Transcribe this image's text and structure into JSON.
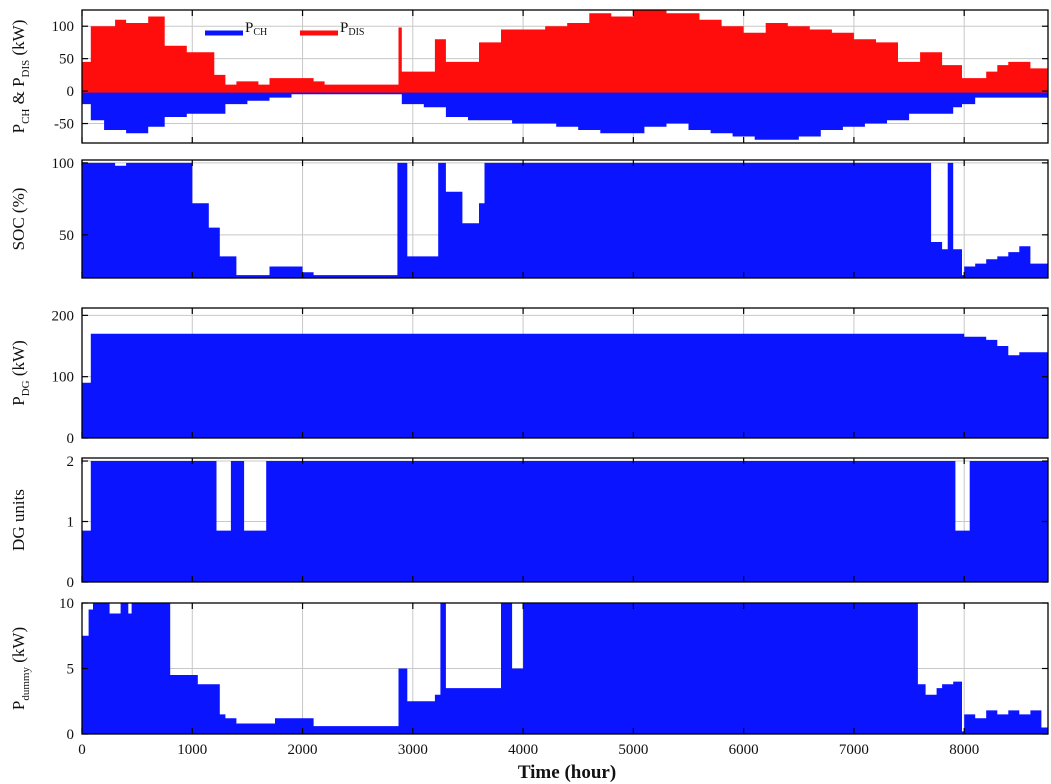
{
  "figure": {
    "xlabel": "Time (hour)",
    "xticks": [
      0,
      1000,
      2000,
      3000,
      4000,
      5000,
      6000,
      7000,
      8000
    ],
    "xlim": [
      0,
      8760
    ],
    "colors": {
      "charge": "#0a14ff",
      "discharge": "#ff0c0c",
      "fill": "#0a14ff",
      "grid": "#c8c8c8"
    }
  },
  "chart_data": [
    {
      "id": "pch",
      "type": "area",
      "ylabel_main": "P",
      "ylabel_sub1": "CH",
      "ylabel_mid": " & P",
      "ylabel_sub2": "DIS",
      "ylabel_unit": " (kW)",
      "ylim": [
        -80,
        125
      ],
      "yticks": [
        100,
        50,
        0,
        -50
      ],
      "legend": {
        "placement": "top-center",
        "items": [
          {
            "main": "P",
            "sub": "CH",
            "color": "#0a14ff"
          },
          {
            "main": "P",
            "sub": "DIS",
            "color": "#ff0c0c"
          }
        ]
      },
      "series": [
        {
          "role": "discharge",
          "x": [
            0,
            80,
            300,
            400,
            600,
            750,
            950,
            1200,
            1300,
            1400,
            1600,
            1700,
            2000,
            2100,
            2200,
            2830,
            2870,
            2900,
            3200,
            3300,
            3600,
            3800,
            4000,
            4200,
            4400,
            4600,
            4800,
            5000,
            5300,
            5600,
            5800,
            6000,
            6200,
            6400,
            6600,
            6800,
            7000,
            7200,
            7400,
            7600,
            7800,
            7980,
            8100,
            8200,
            8300,
            8400,
            8600,
            8760
          ],
          "y": [
            45,
            100,
            110,
            105,
            115,
            70,
            60,
            25,
            10,
            15,
            10,
            20,
            20,
            15,
            10,
            10,
            98,
            30,
            80,
            45,
            75,
            95,
            95,
            100,
            105,
            120,
            115,
            125,
            120,
            110,
            100,
            90,
            105,
            100,
            95,
            90,
            80,
            75,
            45,
            60,
            40,
            20,
            20,
            30,
            40,
            45,
            35,
            0
          ]
        },
        {
          "role": "charge",
          "x": [
            0,
            80,
            200,
            400,
            600,
            750,
            950,
            1100,
            1300,
            1500,
            1700,
            1900,
            2100,
            2300,
            2700,
            2830,
            2900,
            3100,
            3300,
            3500,
            3700,
            3900,
            4100,
            4300,
            4500,
            4700,
            4900,
            5100,
            5300,
            5500,
            5700,
            5900,
            6100,
            6300,
            6500,
            6700,
            6900,
            7100,
            7300,
            7500,
            7700,
            7900,
            7980,
            8100,
            8300,
            8500,
            8760
          ],
          "y": [
            -20,
            -45,
            -60,
            -65,
            -55,
            -40,
            -35,
            -35,
            -20,
            -15,
            -10,
            -5,
            -5,
            -5,
            -5,
            -5,
            -20,
            -25,
            -40,
            -45,
            -45,
            -50,
            -50,
            -55,
            -60,
            -65,
            -65,
            -55,
            -50,
            -60,
            -65,
            -70,
            -75,
            -75,
            -70,
            -60,
            -55,
            -50,
            -45,
            -35,
            -35,
            -25,
            -20,
            -10,
            -10,
            -10,
            0
          ]
        }
      ]
    },
    {
      "id": "soc",
      "type": "area",
      "ylabel_main": "SOC (%)",
      "ylim": [
        20,
        102
      ],
      "yticks": [
        100,
        50
      ],
      "series": [
        {
          "name": "",
          "x": [
            0,
            150,
            300,
            400,
            700,
            780,
            1000,
            1100,
            1150,
            1250,
            1400,
            1500,
            1600,
            1700,
            2000,
            2100,
            2830,
            2860,
            2950,
            3200,
            3230,
            3300,
            3450,
            3600,
            3650,
            7500,
            7600,
            7700,
            7800,
            7850,
            7900,
            7980,
            8000,
            8100,
            8200,
            8300,
            8400,
            8500,
            8600,
            8760
          ],
          "y": [
            100,
            100,
            98,
            100,
            100,
            100,
            72,
            72,
            55,
            35,
            22,
            22,
            22,
            28,
            24,
            22,
            22,
            100,
            35,
            35,
            100,
            80,
            58,
            72,
            100,
            100,
            100,
            45,
            40,
            100,
            40,
            22,
            28,
            30,
            33,
            35,
            38,
            42,
            30,
            30
          ]
        }
      ]
    },
    {
      "id": "pdg",
      "type": "area",
      "ylabel_main": "P",
      "ylabel_sub1": "DG",
      "ylabel_unit": " (kW)",
      "ylim": [
        0,
        212
      ],
      "yticks": [
        200,
        100,
        0
      ],
      "series": [
        {
          "name": "",
          "x": [
            0,
            80,
            120,
            1200,
            1300,
            1400,
            1500,
            1600,
            1650,
            1700,
            7800,
            8000,
            8200,
            8300,
            8400,
            8500,
            8760
          ],
          "y": [
            90,
            170,
            170,
            170,
            170,
            170,
            170,
            170,
            170,
            170,
            170,
            165,
            160,
            150,
            135,
            140,
            140
          ]
        }
      ]
    },
    {
      "id": "dgunits",
      "type": "area",
      "ylabel_main": "DG units",
      "ylim": [
        0,
        2.05
      ],
      "yticks": [
        2,
        1,
        0
      ],
      "series": [
        {
          "name": "",
          "x": [
            0,
            80,
            1200,
            1220,
            1330,
            1350,
            1450,
            1470,
            1650,
            1670,
            7900,
            7920,
            8030,
            8050,
            8760
          ],
          "y": [
            0.85,
            2,
            2,
            0.85,
            0.85,
            2,
            2,
            0.85,
            0.85,
            2,
            2,
            0.85,
            0.85,
            2,
            2
          ]
        }
      ]
    },
    {
      "id": "pdummy",
      "type": "area",
      "ylabel_main": "P",
      "ylabel_sub1": "dummy",
      "ylabel_unit": " (kW)",
      "ylim": [
        0,
        10
      ],
      "yticks": [
        10,
        5,
        0
      ],
      "series": [
        {
          "name": "",
          "x": [
            0,
            60,
            100,
            180,
            250,
            350,
            420,
            450,
            750,
            800,
            1050,
            1250,
            1300,
            1400,
            1600,
            1750,
            2000,
            2100,
            2700,
            2830,
            2870,
            2950,
            3200,
            3250,
            3300,
            3600,
            3800,
            3900,
            4000,
            7500,
            7580,
            7650,
            7750,
            7800,
            7900,
            7980,
            8000,
            8100,
            8200,
            8300,
            8400,
            8500,
            8600,
            8700,
            8760
          ],
          "y": [
            7.5,
            9.5,
            10,
            10,
            9.2,
            10,
            9.2,
            10,
            10,
            4.5,
            3.8,
            1.5,
            1.2,
            0.8,
            0.8,
            1.2,
            1.2,
            0.6,
            0.6,
            0.6,
            5.0,
            2.5,
            3.0,
            10,
            3.5,
            3.5,
            10,
            5.0,
            10,
            10,
            3.8,
            3.0,
            3.5,
            3.8,
            4.0,
            0.2,
            1.5,
            1.2,
            1.8,
            1.5,
            1.8,
            1.5,
            1.8,
            0.5,
            0.5
          ]
        }
      ]
    }
  ]
}
